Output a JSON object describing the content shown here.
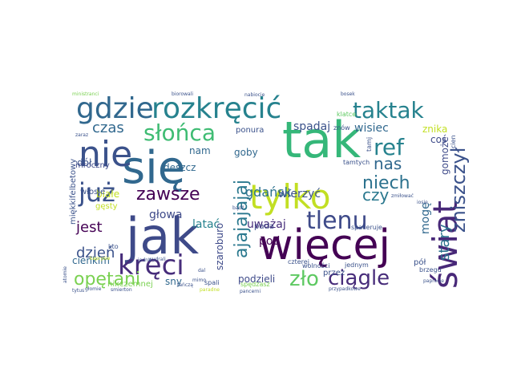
{
  "wordcloud": {
    "words": [
      {
        "text": "tak",
        "color": "#35b779"
      },
      {
        "text": "jak",
        "color": "#3e4a89"
      },
      {
        "text": "się",
        "color": "#31688e"
      },
      {
        "text": "więcej",
        "color": "#440154"
      },
      {
        "text": "tylko",
        "color": "#c2df23"
      },
      {
        "text": "nie",
        "color": "#3b528b"
      },
      {
        "text": "rozkręcić",
        "color": "#26828e"
      },
      {
        "text": "świat",
        "color": "#482878"
      },
      {
        "text": "gdzie",
        "color": "#31688e"
      },
      {
        "text": "taktak",
        "color": "#26828e"
      },
      {
        "text": "kręci",
        "color": "#472d7b"
      },
      {
        "text": "już",
        "color": "#3b528b"
      },
      {
        "text": "tlenu",
        "color": "#3e4a89"
      },
      {
        "text": "słońca",
        "color": "#3fbc73"
      },
      {
        "text": "ref",
        "color": "#26828e"
      },
      {
        "text": "zło",
        "color": "#5ec962"
      },
      {
        "text": "ajajajajaj",
        "color": "#2a788e"
      },
      {
        "text": "niech",
        "color": "#2c728e"
      },
      {
        "text": "ciągle",
        "color": "#472c7a"
      },
      {
        "text": "opętani",
        "color": "#7ad151"
      },
      {
        "text": "zawsze",
        "color": "#440154"
      },
      {
        "text": "zniszczył",
        "color": "#3b528b"
      },
      {
        "text": "nas",
        "color": "#31688e"
      },
      {
        "text": "czy",
        "color": "#2a788e"
      },
      {
        "text": "dzień",
        "color": "#3b528b"
      },
      {
        "text": "jest",
        "color": "#440154"
      },
      {
        "text": "czas",
        "color": "#31688e"
      },
      {
        "text": "gdańsk",
        "color": "#2c728e"
      },
      {
        "text": "stary",
        "color": "#2c728e"
      },
      {
        "text": "wierzyć",
        "color": "#3b528b"
      },
      {
        "text": "spadaj",
        "color": "#3b528b"
      },
      {
        "text": "wisiec",
        "color": "#31688e"
      },
      {
        "text": "uważaj",
        "color": "#472d7b"
      },
      {
        "text": "pod",
        "color": "#440154"
      },
      {
        "text": "latać",
        "color": "#26828e"
      },
      {
        "text": "głowa",
        "color": "#3e4a89"
      },
      {
        "text": "mogę",
        "color": "#31688e"
      },
      {
        "text": "znika",
        "color": "#c2df23"
      },
      {
        "text": "szaroburo",
        "color": "#3e4a89"
      },
      {
        "text": "goby",
        "color": "#31688e"
      },
      {
        "text": "deszcz",
        "color": "#31688e"
      },
      {
        "text": "nam",
        "color": "#31688e"
      },
      {
        "text": "pada",
        "color": "#3e4a89"
      },
      {
        "text": "dół",
        "color": "#3b528b"
      },
      {
        "text": "coś",
        "color": "#3e4a89"
      },
      {
        "text": "gomoże",
        "color": "#3e4a89"
      },
      {
        "text": "cienkim",
        "color": "#31688e"
      },
      {
        "text": "podzieli",
        "color": "#3e4a89"
      },
      {
        "text": "sny",
        "color": "#31688e"
      },
      {
        "text": "nikczemnej",
        "color": "#7ad151"
      },
      {
        "text": "ponura",
        "color": "#3b528b"
      },
      {
        "text": "mroczny",
        "color": "#3e4a89"
      },
      {
        "text": "białe",
        "color": "#c2df23"
      },
      {
        "text": "gęsty",
        "color": "#c2df23"
      },
      {
        "text": "włosie",
        "color": "#3b528b"
      },
      {
        "text": "miękkifelbetowy",
        "color": "#3b528b"
      },
      {
        "text": "przez",
        "color": "#3b528b"
      },
      {
        "text": "pół",
        "color": "#3b528b"
      },
      {
        "text": "wolności",
        "color": "#3b528b"
      },
      {
        "text": "jednym",
        "color": "#3b528b"
      },
      {
        "text": "tamtych",
        "color": "#3b528b"
      },
      {
        "text": "spaceruje",
        "color": "#3b528b"
      },
      {
        "text": "klatce",
        "color": "#5ec962"
      },
      {
        "text": "znów",
        "color": "#3b528b"
      },
      {
        "text": "tamj",
        "color": "#3b528b"
      },
      {
        "text": "brzegu",
        "color": "#3b528b"
      },
      {
        "text": "cien",
        "color": "#3b528b"
      },
      {
        "text": "kto",
        "color": "#3b528b"
      },
      {
        "text": "spędzasz",
        "color": "#7ad151"
      },
      {
        "text": "spali",
        "color": "#3b528b"
      },
      {
        "text": "czterej",
        "color": "#3b528b"
      },
      {
        "text": "ministranci",
        "color": "#7ad151"
      },
      {
        "text": "biorowali",
        "color": "#3b528b"
      },
      {
        "text": "nabiocie",
        "color": "#3b528b"
      },
      {
        "text": "bosek",
        "color": "#3b528b"
      },
      {
        "text": "paprocie",
        "color": "#3b528b"
      },
      {
        "text": "przypadkowe",
        "color": "#3b528b"
      },
      {
        "text": "pancerni",
        "color": "#3b528b"
      },
      {
        "text": "tytus",
        "color": "#3b528b"
      },
      {
        "text": "głomie",
        "color": "#3b528b"
      },
      {
        "text": "smierton",
        "color": "#3b528b"
      },
      {
        "text": "jedna",
        "color": "#3b528b"
      },
      {
        "text": "wydrali",
        "color": "#3b528b"
      },
      {
        "text": "zmiłować",
        "color": "#3b528b"
      },
      {
        "text": "zaraz",
        "color": "#3b528b"
      },
      {
        "text": "atomie",
        "color": "#3b528b"
      },
      {
        "text": "iosie",
        "color": "#3b528b"
      },
      {
        "text": "tańczą",
        "color": "#3b528b"
      },
      {
        "text": "paradne",
        "color": "#c2df23"
      },
      {
        "text": "kaprysie",
        "color": "#c2df23"
      },
      {
        "text": "mimo",
        "color": "#3b528b"
      },
      {
        "text": "bądź",
        "color": "#3b528b"
      },
      {
        "text": "dal",
        "color": "#3b528b"
      }
    ]
  }
}
